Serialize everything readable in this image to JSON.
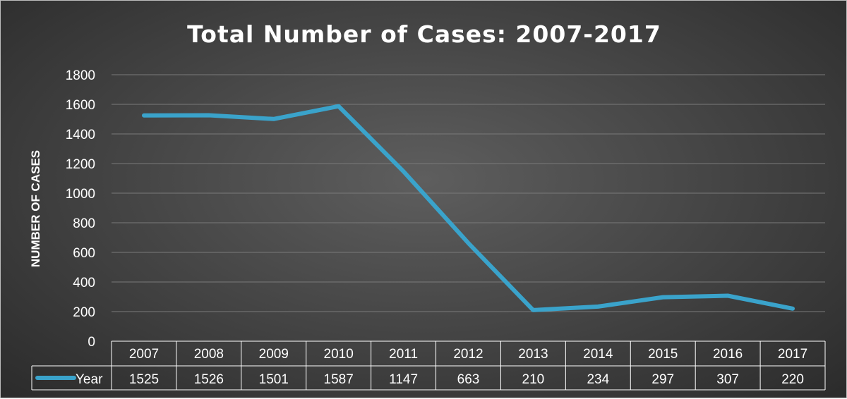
{
  "chart_data": {
    "type": "line",
    "title": "Total Number of Cases: 2007-2017",
    "xlabel": "",
    "ylabel": "NUMBER OF CASES",
    "categories": [
      "2007",
      "2008",
      "2009",
      "2010",
      "2011",
      "2012",
      "2013",
      "2014",
      "2015",
      "2016",
      "2017"
    ],
    "series": [
      {
        "name": "Year",
        "values": [
          1525,
          1526,
          1501,
          1587,
          1147,
          663,
          210,
          234,
          297,
          307,
          220
        ]
      }
    ],
    "ylim": [
      0,
      1800
    ],
    "yticks": [
      0,
      200,
      400,
      600,
      800,
      1000,
      1200,
      1400,
      1600,
      1800
    ],
    "grid": true,
    "data_table": true,
    "colors": {
      "series": "#3aa3cb",
      "background": "#4a4a4a",
      "grid": "#7a7a7a",
      "text": "#ffffff"
    }
  }
}
